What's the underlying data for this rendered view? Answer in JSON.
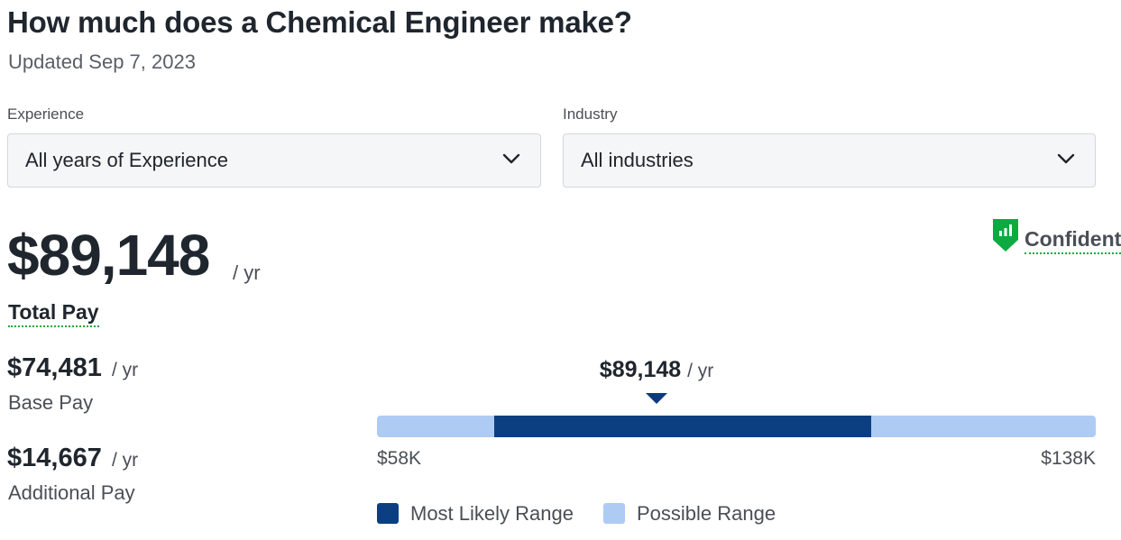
{
  "header": {
    "title": "How much does a Chemical Engineer make?",
    "updated": "Updated Sep 7, 2023"
  },
  "filters": {
    "experience": {
      "label": "Experience",
      "selected": "All years of Experience"
    },
    "industry": {
      "label": "Industry",
      "selected": "All industries"
    }
  },
  "icons": {
    "dropdown": "chevron-down-icon",
    "confidence": "shield-chart-icon"
  },
  "summary": {
    "total_pay": "$89,148",
    "per_year": "/ yr",
    "total_pay_label": "Total Pay",
    "confidence_label": "Confident"
  },
  "breakdown": {
    "base_pay": {
      "value": "$74,481",
      "unit": "/ yr",
      "label": "Base Pay"
    },
    "additional_pay": {
      "value": "$14,667",
      "unit": "/ yr",
      "label": "Additional Pay"
    }
  },
  "chart_data": {
    "type": "range",
    "marker": {
      "value": 89148,
      "label": "$89,148",
      "unit": "/ yr"
    },
    "possible_range": {
      "min": 58000,
      "max": 138000,
      "min_label": "$58K",
      "max_label": "$138K"
    },
    "likely_range": {
      "min": 71000,
      "max": 113000
    },
    "legend": [
      {
        "name": "Most Likely Range",
        "color": "#0c3f82"
      },
      {
        "name": "Possible Range",
        "color": "#aecbf4"
      }
    ]
  },
  "colors": {
    "accent_green": "#0caa41",
    "likely": "#0c3f82",
    "possible": "#aecbf4"
  }
}
